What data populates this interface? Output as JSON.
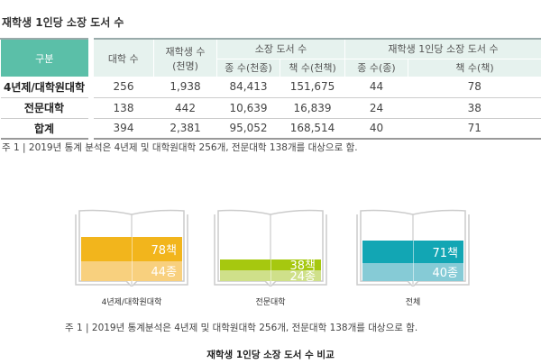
{
  "title": "재학생 1인당 소장 도서 수",
  "table": {
    "header": {
      "category": "구분",
      "univ_count": "대학 수",
      "students": "재학생 수",
      "students_unit": "(천명)",
      "holdings": "소장 도서 수",
      "holdings_titles": "종 수(천종)",
      "holdings_volumes": "책 수(천책)",
      "per_student": "재학생 1인당 소장 도서 수",
      "per_titles": "종 수(종)",
      "per_volumes": "책 수(책)"
    },
    "rows": [
      {
        "name": "4년제/대학원대학",
        "univ": "256",
        "students": "1,938",
        "titles": "84,413",
        "volumes": "151,675",
        "per_titles": "44",
        "per_volumes": "78"
      },
      {
        "name": "전문대학",
        "univ": "138",
        "students": "442",
        "titles": "10,639",
        "volumes": "16,839",
        "per_titles": "24",
        "per_volumes": "38"
      },
      {
        "name": "합계",
        "univ": "394",
        "students": "2,381",
        "titles": "95,052",
        "volumes": "168,514",
        "per_titles": "40",
        "per_volumes": "71"
      }
    ]
  },
  "note1": "주 1 | 2019년 통계 분석은 4년제 및 대학원대학 256개, 전문대학 138개를 대상으로 함.",
  "books": [
    {
      "label": "4년제/대학원대학",
      "volumes": "78책",
      "titles": "44종",
      "volumes_value": 78,
      "titles_value": 44,
      "dark": "#f2b51c",
      "light": "#f8d07e"
    },
    {
      "label": "전문대학",
      "volumes": "38책",
      "titles": "24종",
      "volumes_value": 38,
      "titles_value": 24,
      "dark": "#a6c80f",
      "light": "#cfe08a"
    },
    {
      "label": "전체",
      "volumes": "71책",
      "titles": "40종",
      "volumes_value": 71,
      "titles_value": 40,
      "dark": "#12a6b4",
      "light": "#86cbd6"
    }
  ],
  "note2": "주 1 | 2019년 통계분석은 4년제 및 대학원대학 256개, 전문대학 138개를 대상으로 함.",
  "caption": "재학생 1인당 소장 도서 수 비교"
}
